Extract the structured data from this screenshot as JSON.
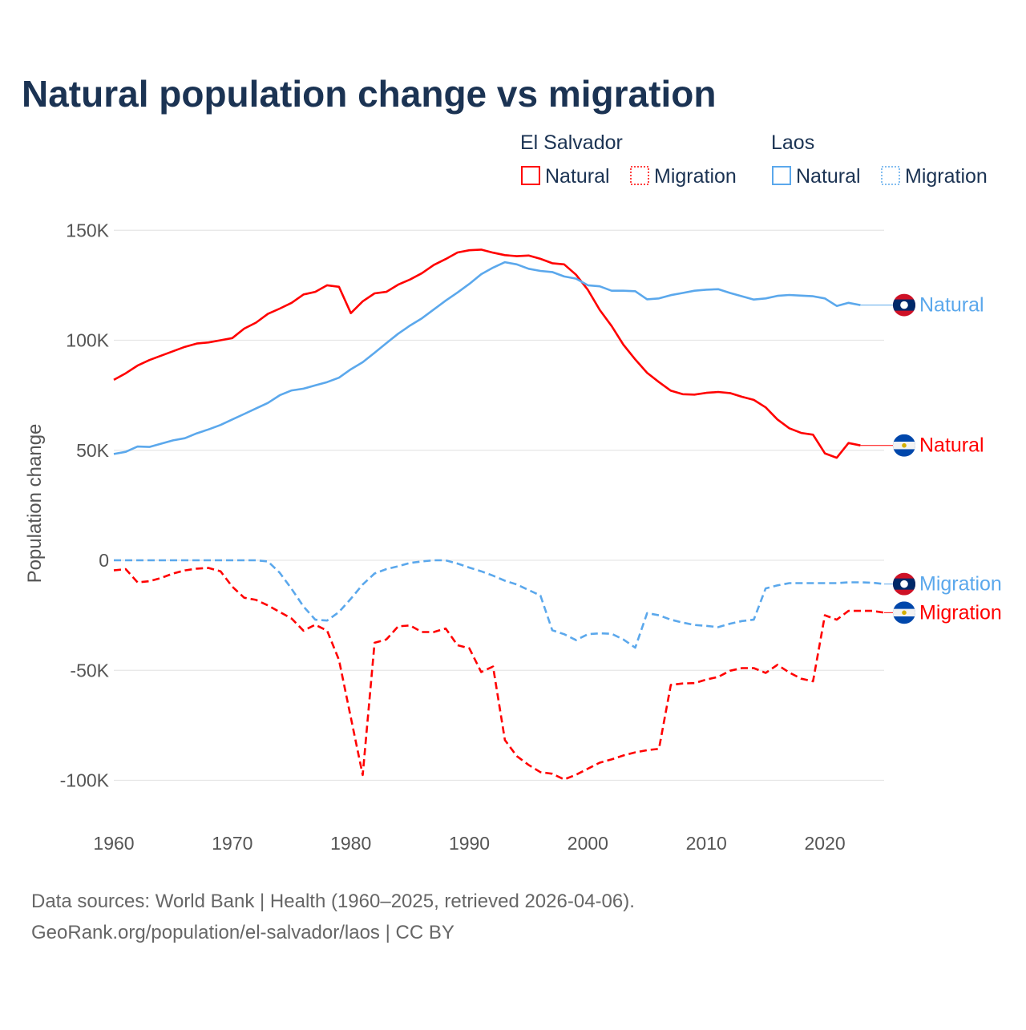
{
  "chart_data": {
    "type": "line",
    "title": "Natural population change vs migration",
    "ylabel": "Population change",
    "xlabel": "",
    "xlim": [
      1960,
      2025
    ],
    "ylim": [
      -100000,
      150000
    ],
    "x_ticks": [
      1960,
      1970,
      1980,
      1990,
      2000,
      2010,
      2020
    ],
    "x_tick_labels": [
      "1960",
      "1970",
      "1980",
      "1990",
      "2000",
      "2010",
      "2020"
    ],
    "y_ticks": [
      150000,
      100000,
      50000,
      0,
      -50000,
      -100000
    ],
    "y_tick_labels": [
      "150K",
      "100K",
      "50K",
      "0",
      "-50K",
      "-100K"
    ],
    "grid": true,
    "legend": {
      "placement": "top-right",
      "groups": [
        {
          "title": "El Salvador",
          "items": [
            "Natural",
            "Migration"
          ]
        },
        {
          "title": "Laos",
          "items": [
            "Natural",
            "Migration"
          ]
        }
      ]
    },
    "series": [
      {
        "name": "El Salvador Natural",
        "country": "El Salvador",
        "kind": "Natural",
        "label": "Natural",
        "color": "#ff0000",
        "dashed": false,
        "start_year": 1960,
        "values": [
          82000,
          85000,
          88500,
          91000,
          93000,
          95000,
          97000,
          98500,
          99000,
          100000,
          101000,
          105300,
          108000,
          112000,
          114400,
          117000,
          120800,
          122000,
          125000,
          124300,
          112300,
          117700,
          121300,
          122000,
          125300,
          127600,
          130500,
          134200,
          136900,
          139900,
          140900,
          141200,
          139800,
          138700,
          138200,
          138500,
          137000,
          135000,
          134500,
          129800,
          122900,
          113800,
          106500,
          98000,
          91300,
          85200,
          81000,
          77100,
          75500,
          75300,
          76100,
          76500,
          76000,
          74300,
          72900,
          69500,
          64000,
          60000,
          57900,
          57100,
          48600,
          46600,
          53300,
          52200
        ]
      },
      {
        "name": "Laos Natural",
        "country": "Laos",
        "kind": "Natural",
        "label": "Natural",
        "color": "#5ba8ec",
        "dashed": false,
        "start_year": 1960,
        "values": [
          48300,
          49300,
          51700,
          51500,
          53000,
          54500,
          55500,
          57700,
          59500,
          61500,
          64000,
          66500,
          69000,
          71500,
          75000,
          77200,
          78000,
          79500,
          81000,
          83000,
          86800,
          90000,
          94300,
          98700,
          103000,
          106700,
          110000,
          114000,
          118000,
          121700,
          125600,
          130000,
          133000,
          135500,
          134500,
          132500,
          131500,
          131000,
          129000,
          128000,
          125000,
          124500,
          122500,
          122500,
          122300,
          118600,
          119000,
          120500,
          121500,
          122500,
          123000,
          123200,
          121500,
          120000,
          118500,
          119000,
          120200,
          120600,
          120300,
          120000,
          119000,
          115600,
          117000,
          116000
        ]
      },
      {
        "name": "El Salvador Migration",
        "country": "El Salvador",
        "kind": "Migration",
        "label": "Migration",
        "color": "#ff0000",
        "dashed": true,
        "start_year": 1960,
        "values": [
          -4600,
          -4000,
          -10000,
          -9500,
          -8000,
          -6000,
          -4600,
          -3800,
          -3500,
          -5000,
          -12000,
          -17000,
          -18000,
          -20500,
          -23500,
          -26500,
          -32000,
          -29300,
          -32000,
          -45300,
          -71500,
          -97600,
          -37500,
          -36000,
          -30000,
          -29600,
          -32600,
          -32600,
          -31000,
          -38600,
          -40000,
          -50800,
          -48300,
          -81700,
          -89000,
          -93000,
          -96300,
          -97000,
          -99600,
          -97500,
          -94700,
          -92000,
          -90500,
          -88700,
          -87300,
          -86300,
          -85700,
          -56600,
          -56000,
          -55800,
          -54200,
          -53000,
          -50200,
          -49000,
          -49000,
          -51200,
          -47500,
          -51000,
          -53800,
          -55000,
          -25000,
          -27000,
          -23000,
          -23000,
          -23000,
          -23800
        ]
      },
      {
        "name": "Laos Migration",
        "country": "Laos",
        "kind": "Migration",
        "label": "Migration",
        "color": "#5ba8ec",
        "dashed": true,
        "start_year": 1960,
        "values": [
          0,
          0,
          0,
          0,
          0,
          0,
          0,
          0,
          0,
          0,
          0,
          0,
          0,
          -500,
          -5700,
          -13000,
          -21000,
          -27000,
          -27400,
          -23500,
          -17500,
          -11000,
          -6000,
          -4000,
          -2700,
          -1200,
          -500,
          0,
          0,
          -1500,
          -3300,
          -5000,
          -7000,
          -9300,
          -11000,
          -13500,
          -16000,
          -31800,
          -33600,
          -36300,
          -33600,
          -33200,
          -33400,
          -36000,
          -39700,
          -24000,
          -25000,
          -27000,
          -28300,
          -29400,
          -29800,
          -30400,
          -28800,
          -27600,
          -27000,
          -12800,
          -11400,
          -10400,
          -10400,
          -10400,
          -10400,
          -10400,
          -10000,
          -10000,
          -10200,
          -10800
        ]
      }
    ]
  },
  "footer": {
    "sources": "Data sources: World Bank | Health (1960–2025, retrieved 2026-04-06).",
    "credit": "GeoRank.org/population/el-salvador/laos | CC BY"
  },
  "colors": {
    "title": "#1b3353",
    "el_salvador": "#ff0000",
    "laos": "#5ba8ec",
    "grid": "#e6e6e6",
    "tick": "#555555"
  },
  "icons": {
    "el_salvador": "el-salvador-flag-icon",
    "laos": "laos-flag-icon"
  }
}
